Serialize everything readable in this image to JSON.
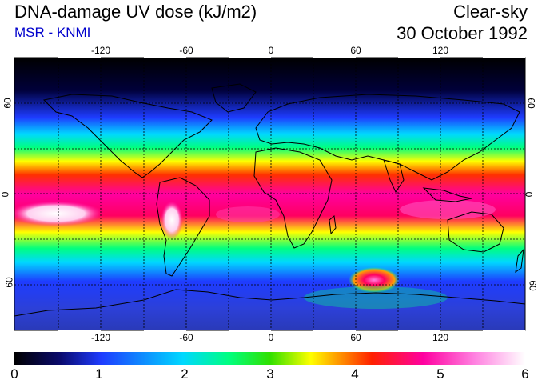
{
  "header": {
    "title": "DNA-damage UV dose (kJ/m2)",
    "source": "MSR - KNMI",
    "condition": "Clear-sky",
    "date": "30 October 1992"
  },
  "map": {
    "lon_ticks": [
      "-120",
      "-60",
      "0",
      "60",
      "120"
    ],
    "lat_ticks": [
      "60",
      "0",
      "-60"
    ],
    "lon_range": [
      -180,
      180
    ],
    "lat_range": [
      -90,
      90
    ],
    "grid": "dashed every 30 degrees"
  },
  "colorbar": {
    "min": 0,
    "max": 6,
    "labels": [
      "0",
      "1",
      "2",
      "3",
      "4",
      "5",
      "6"
    ],
    "colors": [
      "#000000",
      "#0a0a6e",
      "#1e3cff",
      "#00d8ff",
      "#00ff80",
      "#30e000",
      "#ffff00",
      "#ffa000",
      "#ff2000",
      "#ff00a0",
      "#ff80e0",
      "#ffffff"
    ]
  }
}
